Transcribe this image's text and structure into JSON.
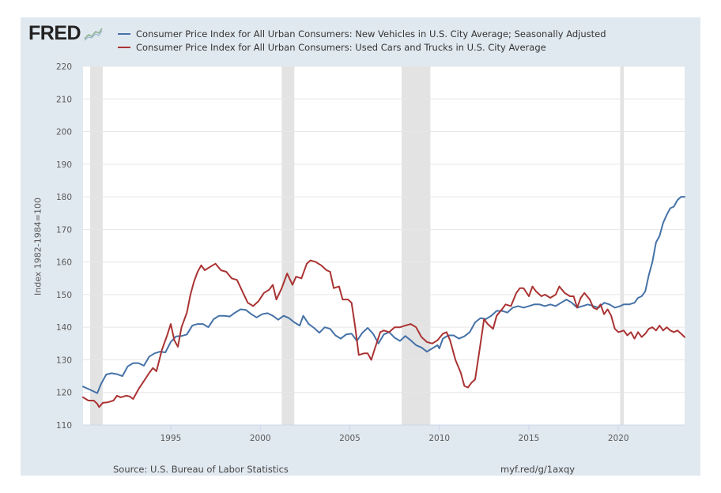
{
  "brand": {
    "logo_text": "FRED",
    "logo_icon": "fred-graph-icon"
  },
  "footer": {
    "source": "Source: U.S. Bureau of Labor Statistics",
    "url": "myf.red/g/1axqy"
  },
  "chart_data": {
    "type": "line",
    "title": "",
    "xlabel": "",
    "ylabel": "Index 1982-1984=100",
    "xlim": [
      1990.1,
      2023.7
    ],
    "ylim": [
      110,
      220
    ],
    "yticks": [
      110,
      120,
      130,
      140,
      150,
      160,
      170,
      180,
      190,
      200,
      210,
      220
    ],
    "xticks": [
      1995,
      2000,
      2005,
      2010,
      2015,
      2020
    ],
    "grid": true,
    "legend_position": "top-left",
    "recessions": [
      [
        1990.5,
        1991.2
      ],
      [
        2001.2,
        2001.9
      ],
      [
        2007.9,
        2009.5
      ],
      [
        2020.1,
        2020.3
      ]
    ],
    "series": [
      {
        "name": "Consumer Price Index for All Urban Consumers: New Vehicles in U.S. City Average; Seasonally Adjusted",
        "color": "#4572a7",
        "points": [
          [
            1990.1,
            121.8
          ],
          [
            1990.5,
            120.8
          ],
          [
            1990.9,
            119.8
          ],
          [
            1991.1,
            122.5
          ],
          [
            1991.4,
            125.5
          ],
          [
            1991.7,
            125.9
          ],
          [
            1992.0,
            125.6
          ],
          [
            1992.3,
            125.0
          ],
          [
            1992.6,
            128.0
          ],
          [
            1992.9,
            129.0
          ],
          [
            1993.2,
            129.0
          ],
          [
            1993.5,
            128.2
          ],
          [
            1993.8,
            131.0
          ],
          [
            1994.1,
            132.0
          ],
          [
            1994.4,
            132.5
          ],
          [
            1994.7,
            132.3
          ],
          [
            1995.0,
            135.5
          ],
          [
            1995.3,
            137.2
          ],
          [
            1995.6,
            137.3
          ],
          [
            1995.9,
            137.8
          ],
          [
            1996.2,
            140.5
          ],
          [
            1996.5,
            141.0
          ],
          [
            1996.8,
            141.0
          ],
          [
            1997.1,
            140.0
          ],
          [
            1997.4,
            142.5
          ],
          [
            1997.7,
            143.5
          ],
          [
            1998.0,
            143.5
          ],
          [
            1998.3,
            143.3
          ],
          [
            1998.6,
            144.5
          ],
          [
            1998.9,
            145.5
          ],
          [
            1999.2,
            145.3
          ],
          [
            1999.5,
            144.0
          ],
          [
            1999.8,
            143.0
          ],
          [
            2000.1,
            144.0
          ],
          [
            2000.4,
            144.3
          ],
          [
            2000.7,
            143.5
          ],
          [
            2001.0,
            142.3
          ],
          [
            2001.3,
            143.5
          ],
          [
            2001.6,
            142.8
          ],
          [
            2001.9,
            141.5
          ],
          [
            2002.2,
            140.5
          ],
          [
            2002.4,
            143.5
          ],
          [
            2002.7,
            141.0
          ],
          [
            2003.0,
            139.8
          ],
          [
            2003.3,
            138.3
          ],
          [
            2003.6,
            140.0
          ],
          [
            2003.9,
            139.5
          ],
          [
            2004.2,
            137.5
          ],
          [
            2004.5,
            136.5
          ],
          [
            2004.8,
            137.8
          ],
          [
            2005.1,
            138.0
          ],
          [
            2005.4,
            135.8
          ],
          [
            2005.7,
            138.3
          ],
          [
            2006.0,
            139.8
          ],
          [
            2006.3,
            138.0
          ],
          [
            2006.6,
            135.0
          ],
          [
            2006.9,
            137.8
          ],
          [
            2007.2,
            138.5
          ],
          [
            2007.5,
            136.8
          ],
          [
            2007.8,
            135.8
          ],
          [
            2008.1,
            137.3
          ],
          [
            2008.4,
            136.0
          ],
          [
            2008.7,
            134.5
          ],
          [
            2009.0,
            133.8
          ],
          [
            2009.3,
            132.5
          ],
          [
            2009.6,
            133.5
          ],
          [
            2009.9,
            134.5
          ],
          [
            2010.0,
            133.5
          ],
          [
            2010.2,
            136.5
          ],
          [
            2010.5,
            137.5
          ],
          [
            2010.8,
            137.5
          ],
          [
            2011.1,
            136.5
          ],
          [
            2011.4,
            137.2
          ],
          [
            2011.7,
            138.5
          ],
          [
            2012.0,
            141.5
          ],
          [
            2012.3,
            142.8
          ],
          [
            2012.6,
            142.5
          ],
          [
            2012.9,
            143.5
          ],
          [
            2013.2,
            145.0
          ],
          [
            2013.5,
            145.0
          ],
          [
            2013.8,
            144.5
          ],
          [
            2014.1,
            146.0
          ],
          [
            2014.4,
            146.5
          ],
          [
            2014.7,
            146.0
          ],
          [
            2015.0,
            146.5
          ],
          [
            2015.3,
            147.0
          ],
          [
            2015.6,
            147.0
          ],
          [
            2015.9,
            146.5
          ],
          [
            2016.2,
            147.0
          ],
          [
            2016.5,
            146.5
          ],
          [
            2016.8,
            147.5
          ],
          [
            2017.1,
            148.5
          ],
          [
            2017.4,
            147.5
          ],
          [
            2017.7,
            146.0
          ],
          [
            2018.0,
            146.5
          ],
          [
            2018.3,
            147.0
          ],
          [
            2018.6,
            146.5
          ],
          [
            2018.9,
            146.0
          ],
          [
            2019.2,
            147.5
          ],
          [
            2019.5,
            147.0
          ],
          [
            2019.8,
            146.0
          ],
          [
            2020.1,
            146.5
          ],
          [
            2020.3,
            147.0
          ],
          [
            2020.6,
            147.0
          ],
          [
            2020.9,
            147.5
          ],
          [
            2021.1,
            149.0
          ],
          [
            2021.3,
            149.5
          ],
          [
            2021.5,
            151.0
          ],
          [
            2021.7,
            156.0
          ],
          [
            2021.9,
            160.0
          ],
          [
            2022.1,
            166.0
          ],
          [
            2022.3,
            168.0
          ],
          [
            2022.5,
            172.0
          ],
          [
            2022.7,
            174.5
          ],
          [
            2022.9,
            176.5
          ],
          [
            2023.1,
            177.0
          ],
          [
            2023.3,
            179.0
          ],
          [
            2023.5,
            180.0
          ],
          [
            2023.7,
            180.0
          ]
        ]
      },
      {
        "name": "Consumer Price Index for All Urban Consumers: Used Cars and Trucks in U.S. City Average",
        "color": "#aa3333",
        "points": [
          [
            1990.1,
            118.5
          ],
          [
            1990.4,
            117.5
          ],
          [
            1990.7,
            117.5
          ],
          [
            1990.9,
            116.5
          ],
          [
            1991.0,
            115.5
          ],
          [
            1991.2,
            116.8
          ],
          [
            1991.5,
            117.0
          ],
          [
            1991.8,
            117.5
          ],
          [
            1992.0,
            119.0
          ],
          [
            1992.2,
            118.5
          ],
          [
            1992.5,
            119.0
          ],
          [
            1992.7,
            118.8
          ],
          [
            1992.9,
            118.0
          ],
          [
            1993.2,
            121.0
          ],
          [
            1993.5,
            123.5
          ],
          [
            1993.8,
            126.0
          ],
          [
            1994.0,
            127.5
          ],
          [
            1994.2,
            126.5
          ],
          [
            1994.5,
            133.0
          ],
          [
            1994.8,
            137.5
          ],
          [
            1995.0,
            141.0
          ],
          [
            1995.2,
            136.0
          ],
          [
            1995.4,
            134.0
          ],
          [
            1995.6,
            140.0
          ],
          [
            1995.9,
            144.5
          ],
          [
            1996.1,
            150.0
          ],
          [
            1996.3,
            154.0
          ],
          [
            1996.5,
            157.0
          ],
          [
            1996.7,
            159.0
          ],
          [
            1996.9,
            157.5
          ],
          [
            1997.2,
            158.5
          ],
          [
            1997.5,
            159.5
          ],
          [
            1997.8,
            157.5
          ],
          [
            1998.1,
            157.0
          ],
          [
            1998.4,
            155.0
          ],
          [
            1998.7,
            154.5
          ],
          [
            1999.0,
            151.0
          ],
          [
            1999.3,
            147.5
          ],
          [
            1999.6,
            146.5
          ],
          [
            1999.9,
            148.0
          ],
          [
            2000.2,
            150.5
          ],
          [
            2000.5,
            151.5
          ],
          [
            2000.7,
            153.0
          ],
          [
            2000.9,
            148.5
          ],
          [
            2001.2,
            152.0
          ],
          [
            2001.5,
            156.5
          ],
          [
            2001.8,
            153.0
          ],
          [
            2002.0,
            155.5
          ],
          [
            2002.3,
            155.0
          ],
          [
            2002.6,
            159.5
          ],
          [
            2002.8,
            160.5
          ],
          [
            2003.1,
            160.0
          ],
          [
            2003.4,
            159.0
          ],
          [
            2003.7,
            157.5
          ],
          [
            2003.9,
            157.0
          ],
          [
            2004.1,
            152.0
          ],
          [
            2004.4,
            152.5
          ],
          [
            2004.6,
            148.5
          ],
          [
            2004.9,
            148.5
          ],
          [
            2005.1,
            147.5
          ],
          [
            2005.3,
            140.0
          ],
          [
            2005.5,
            131.5
          ],
          [
            2005.8,
            132.0
          ],
          [
            2006.0,
            132.0
          ],
          [
            2006.2,
            130.0
          ],
          [
            2006.4,
            133.5
          ],
          [
            2006.7,
            138.5
          ],
          [
            2006.9,
            139.0
          ],
          [
            2007.2,
            138.5
          ],
          [
            2007.5,
            140.0
          ],
          [
            2007.8,
            140.0
          ],
          [
            2008.1,
            140.5
          ],
          [
            2008.4,
            141.0
          ],
          [
            2008.7,
            140.0
          ],
          [
            2009.0,
            137.0
          ],
          [
            2009.3,
            135.5
          ],
          [
            2009.6,
            135.0
          ],
          [
            2009.9,
            136.0
          ],
          [
            2010.2,
            138.0
          ],
          [
            2010.4,
            138.5
          ],
          [
            2010.6,
            136.0
          ],
          [
            2010.9,
            130.0
          ],
          [
            2011.2,
            126.0
          ],
          [
            2011.4,
            122.0
          ],
          [
            2011.6,
            121.5
          ],
          [
            2011.8,
            123.0
          ],
          [
            2012.0,
            124.0
          ],
          [
            2012.3,
            135.0
          ],
          [
            2012.5,
            142.5
          ],
          [
            2012.7,
            141.0
          ],
          [
            2013.0,
            139.5
          ],
          [
            2013.2,
            143.5
          ],
          [
            2013.5,
            145.5
          ],
          [
            2013.7,
            147.0
          ],
          [
            2014.0,
            146.5
          ],
          [
            2014.3,
            150.5
          ],
          [
            2014.5,
            152.0
          ],
          [
            2014.7,
            152.0
          ],
          [
            2015.0,
            149.5
          ],
          [
            2015.2,
            152.5
          ],
          [
            2015.4,
            151.0
          ],
          [
            2015.7,
            149.5
          ],
          [
            2015.9,
            150.0
          ],
          [
            2016.2,
            149.0
          ],
          [
            2016.5,
            150.0
          ],
          [
            2016.7,
            152.5
          ],
          [
            2017.0,
            150.5
          ],
          [
            2017.3,
            149.5
          ],
          [
            2017.5,
            149.5
          ],
          [
            2017.7,
            146.0
          ],
          [
            2017.9,
            149.0
          ],
          [
            2018.1,
            150.5
          ],
          [
            2018.4,
            148.5
          ],
          [
            2018.6,
            146.0
          ],
          [
            2018.8,
            145.5
          ],
          [
            2019.0,
            147.0
          ],
          [
            2019.2,
            144.0
          ],
          [
            2019.4,
            145.5
          ],
          [
            2019.6,
            143.5
          ],
          [
            2019.8,
            139.5
          ],
          [
            2020.0,
            138.5
          ],
          [
            2020.3,
            139.0
          ],
          [
            2020.5,
            137.5
          ],
          [
            2020.7,
            138.5
          ],
          [
            2020.9,
            136.5
          ],
          [
            2021.1,
            138.5
          ],
          [
            2021.3,
            137.0
          ],
          [
            2021.5,
            138.0
          ],
          [
            2021.7,
            139.5
          ],
          [
            2021.9,
            140.0
          ],
          [
            2022.1,
            139.0
          ],
          [
            2022.3,
            140.5
          ],
          [
            2022.5,
            139.0
          ],
          [
            2022.7,
            140.0
          ],
          [
            2022.9,
            139.0
          ],
          [
            2023.1,
            138.5
          ],
          [
            2023.3,
            139.0
          ],
          [
            2023.5,
            138.0
          ],
          [
            2023.7,
            137.0
          ]
        ]
      }
    ]
  }
}
